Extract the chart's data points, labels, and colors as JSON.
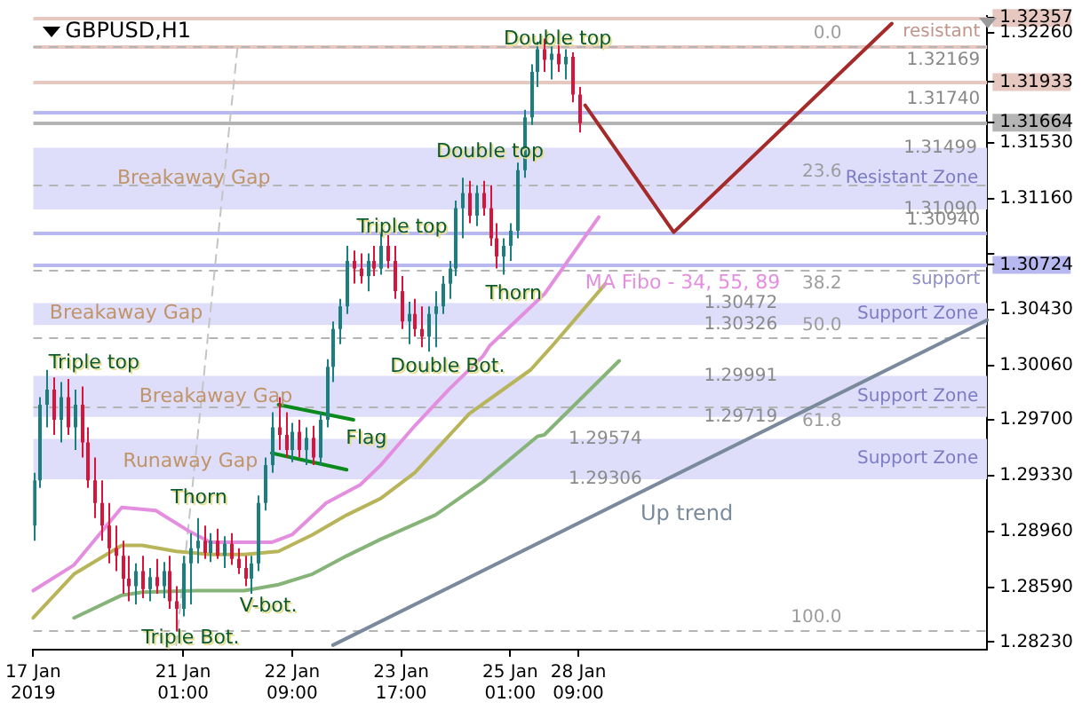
{
  "chart_data": {
    "type": "candlestick",
    "title": "GBPUSD,H1",
    "categories": [
      "17 Jan 2019",
      null,
      null,
      null,
      null,
      null,
      null,
      null,
      null,
      null,
      null,
      null,
      null,
      null,
      null,
      null,
      null,
      null,
      null,
      null,
      null,
      null,
      "21 Jan 01:00",
      null,
      null,
      null,
      null,
      null,
      null,
      null,
      null,
      null,
      null,
      null,
      null,
      null,
      null,
      null,
      "22 Jan 09:00",
      null,
      null,
      null,
      null,
      null,
      null,
      null,
      null,
      null,
      null,
      null,
      null,
      null,
      null,
      null,
      "23 Jan 17:00",
      null,
      null,
      null,
      null,
      null,
      null,
      null,
      null,
      null,
      null,
      null,
      null,
      null,
      null,
      null,
      "25 Jan 01:00",
      null,
      null,
      null,
      null,
      null,
      null,
      null,
      null,
      null,
      "28 Jan 09:00",
      null,
      null,
      null,
      null,
      null,
      null,
      null,
      null,
      null,
      null,
      null,
      null,
      null,
      null,
      null,
      null,
      null,
      null,
      null,
      null,
      null,
      null,
      null,
      null,
      null,
      null,
      null,
      null,
      null,
      null,
      null,
      null,
      null,
      null,
      null,
      null,
      null,
      null,
      null,
      null,
      null,
      null,
      null,
      null,
      null,
      null,
      null,
      null,
      null,
      null,
      null,
      null,
      null,
      null,
      null,
      null,
      null,
      null,
      null,
      null
    ],
    "ohlc": [
      [
        1.29,
        1.2935,
        1.289,
        1.293
      ],
      [
        1.293,
        1.2985,
        1.2925,
        1.298
      ],
      [
        1.298,
        1.3003,
        1.2965,
        1.299
      ],
      [
        1.299,
        1.2998,
        1.296,
        1.297
      ],
      [
        1.297,
        1.2995,
        1.2955,
        1.2985
      ],
      [
        1.2985,
        1.2997,
        1.296,
        1.2965
      ],
      [
        1.2965,
        1.299,
        1.295,
        1.298
      ],
      [
        1.298,
        1.2992,
        1.2945,
        1.2955
      ],
      [
        1.2955,
        1.2965,
        1.2925,
        1.293
      ],
      [
        1.293,
        1.2945,
        1.2905,
        1.2915
      ],
      [
        1.2915,
        1.293,
        1.289,
        1.29
      ],
      [
        1.29,
        1.2915,
        1.2875,
        1.2885
      ],
      [
        1.2885,
        1.29,
        1.287,
        1.288
      ],
      [
        1.288,
        1.289,
        1.2855,
        1.2865
      ],
      [
        1.2865,
        1.288,
        1.285,
        1.286
      ],
      [
        1.286,
        1.2875,
        1.2848,
        1.287
      ],
      [
        1.287,
        1.288,
        1.2852,
        1.2858
      ],
      [
        1.2858,
        1.2872,
        1.285,
        1.2866
      ],
      [
        1.2866,
        1.2878,
        1.2855,
        1.286
      ],
      [
        1.286,
        1.2876,
        1.2852,
        1.287
      ],
      [
        1.287,
        1.288,
        1.2845,
        1.285
      ],
      [
        1.285,
        1.286,
        1.283,
        1.2845
      ],
      [
        1.2845,
        1.288,
        1.284,
        1.2875
      ],
      [
        1.2875,
        1.2895,
        1.2848,
        1.2885
      ],
      [
        1.2885,
        1.2905,
        1.2875,
        1.289
      ],
      [
        1.289,
        1.29,
        1.2878,
        1.2882
      ],
      [
        1.2882,
        1.2895,
        1.2876,
        1.289
      ],
      [
        1.289,
        1.2898,
        1.2878,
        1.288
      ],
      [
        1.288,
        1.2893,
        1.2872,
        1.2888
      ],
      [
        1.2888,
        1.2895,
        1.2874,
        1.2878
      ],
      [
        1.2878,
        1.2885,
        1.2868,
        1.2872
      ],
      [
        1.2872,
        1.288,
        1.286,
        1.2865
      ],
      [
        1.2865,
        1.288,
        1.2855,
        1.2875
      ],
      [
        1.2875,
        1.292,
        1.287,
        1.2915
      ],
      [
        1.2915,
        1.2945,
        1.291,
        1.294
      ],
      [
        1.294,
        1.2975,
        1.2935,
        1.2965
      ],
      [
        1.2965,
        1.2985,
        1.295,
        1.296
      ],
      [
        1.296,
        1.2975,
        1.2945,
        1.295
      ],
      [
        1.295,
        1.2968,
        1.2942,
        1.2962
      ],
      [
        1.2962,
        1.297,
        1.2945,
        1.295
      ],
      [
        1.295,
        1.2965,
        1.294,
        1.2958
      ],
      [
        1.2958,
        1.2966,
        1.294,
        1.2945
      ],
      [
        1.2945,
        1.2975,
        1.294,
        1.297
      ],
      [
        1.297,
        1.301,
        1.2965,
        1.3005
      ],
      [
        1.3005,
        1.3035,
        1.2995,
        1.303
      ],
      [
        1.303,
        1.305,
        1.302,
        1.3045
      ],
      [
        1.3045,
        1.3085,
        1.304,
        1.3075
      ],
      [
        1.3075,
        1.3082,
        1.306,
        1.307
      ],
      [
        1.307,
        1.308,
        1.306,
        1.3065
      ],
      [
        1.3065,
        1.308,
        1.3055,
        1.3075
      ],
      [
        1.3075,
        1.3085,
        1.3065,
        1.307
      ],
      [
        1.307,
        1.3093,
        1.3066,
        1.3085
      ],
      [
        1.3085,
        1.3092,
        1.307,
        1.3075
      ],
      [
        1.3075,
        1.3085,
        1.305,
        1.3055
      ],
      [
        1.3055,
        1.3065,
        1.303,
        1.3035
      ],
      [
        1.3035,
        1.3048,
        1.302,
        1.304
      ],
      [
        1.304,
        1.305,
        1.3025,
        1.303
      ],
      [
        1.303,
        1.3045,
        1.3018,
        1.3025
      ],
      [
        1.3025,
        1.3045,
        1.3015,
        1.304
      ],
      [
        1.304,
        1.3055,
        1.3018,
        1.3045
      ],
      [
        1.3045,
        1.3065,
        1.304,
        1.306
      ],
      [
        1.306,
        1.3075,
        1.305,
        1.307
      ],
      [
        1.307,
        1.3115,
        1.3065,
        1.311
      ],
      [
        1.311,
        1.313,
        1.309,
        1.312
      ],
      [
        1.312,
        1.3128,
        1.31,
        1.3105
      ],
      [
        1.3105,
        1.3125,
        1.3098,
        1.312
      ],
      [
        1.312,
        1.3128,
        1.3105,
        1.311
      ],
      [
        1.311,
        1.3125,
        1.3085,
        1.309
      ],
      [
        1.309,
        1.31,
        1.307,
        1.3078
      ],
      [
        1.3078,
        1.309,
        1.3066,
        1.3085
      ],
      [
        1.3085,
        1.31,
        1.3075,
        1.3095
      ],
      [
        1.3095,
        1.314,
        1.309,
        1.3135
      ],
      [
        1.3135,
        1.3175,
        1.313,
        1.317
      ],
      [
        1.317,
        1.3205,
        1.3165,
        1.32
      ],
      [
        1.32,
        1.322,
        1.319,
        1.3215
      ],
      [
        1.3215,
        1.3222,
        1.32,
        1.3208
      ],
      [
        1.3208,
        1.3218,
        1.3195,
        1.3212
      ],
      [
        1.3212,
        1.3218,
        1.32,
        1.3205
      ],
      [
        1.3205,
        1.3215,
        1.3195,
        1.321
      ],
      [
        1.321,
        1.3213,
        1.318,
        1.3185
      ],
      [
        1.3185,
        1.319,
        1.316,
        1.3166
      ],
      null,
      null,
      null,
      null,
      null,
      null,
      null,
      null,
      null,
      null,
      null,
      null,
      null,
      null,
      null,
      null,
      null,
      null,
      null,
      null,
      null,
      null,
      null,
      null,
      null,
      null,
      null,
      null,
      null,
      null,
      null,
      null,
      null,
      null,
      null,
      null,
      null,
      null,
      null,
      null,
      null,
      null,
      null,
      null,
      null,
      null,
      null,
      null,
      null,
      null,
      null,
      null,
      null,
      null,
      null,
      null,
      null,
      null,
      null,
      null
    ],
    "colors": [
      "#1b7f80",
      "#1b7f80",
      "#1b7f80",
      "#d7143c",
      "#1b7f80",
      "#d7143c",
      "#1b7f80",
      "#d7143c",
      "#d7143c",
      "#d7143c",
      "#d7143c",
      "#d7143c",
      "#d7143c",
      "#d7143c",
      "#d7143c",
      "#1b7f80",
      "#d7143c",
      "#1b7f80",
      "#d7143c",
      "#1b7f80",
      "#d7143c",
      "#d7143c",
      "#1b7f80",
      "#1b7f80",
      "#1b7f80",
      "#d7143c",
      "#1b7f80",
      "#d7143c",
      "#1b7f80",
      "#d7143c",
      "#d7143c",
      "#d7143c",
      "#1b7f80",
      "#1b7f80",
      "#1b7f80",
      "#1b7f80",
      "#d7143c",
      "#d7143c",
      "#1b7f80",
      "#d7143c",
      "#1b7f80",
      "#d7143c",
      "#1b7f80",
      "#1b7f80",
      "#1b7f80",
      "#1b7f80",
      "#1b7f80",
      "#d7143c",
      "#d7143c",
      "#1b7f80",
      "#d7143c",
      "#1b7f80",
      "#d7143c",
      "#d7143c",
      "#d7143c",
      "#1b7f80",
      "#d7143c",
      "#d7143c",
      "#1b7f80",
      "#1b7f80",
      "#1b7f80",
      "#1b7f80",
      "#1b7f80",
      "#1b7f80",
      "#d7143c",
      "#1b7f80",
      "#d7143c",
      "#d7143c",
      "#d7143c",
      "#1b7f80",
      "#1b7f80",
      "#1b7f80",
      "#1b7f80",
      "#1b7f80",
      "#1b7f80",
      "#d7143c",
      "#1b7f80",
      "#d7143c",
      "#1b7f80",
      "#d7143c",
      "#d7143c",
      null,
      null,
      null,
      null,
      null,
      null,
      null,
      null,
      null,
      null,
      null,
      null,
      null,
      null,
      null,
      null,
      null,
      null,
      null,
      null,
      null,
      null,
      null,
      null,
      null,
      null,
      null,
      null,
      null,
      null,
      null,
      null,
      null,
      null,
      null,
      null,
      null,
      null,
      null,
      null,
      null,
      null,
      null,
      null,
      null,
      null,
      null,
      null,
      null,
      null,
      null,
      null,
      null,
      null,
      null,
      null,
      null,
      null,
      null,
      null
    ],
    "series": [
      {
        "type": "line",
        "color": "#e48ee0",
        "values": [
          1.2857,
          null,
          null,
          null,
          null,
          null,
          1.2874,
          null,
          null,
          null,
          null,
          null,
          null,
          1.2912,
          null,
          null,
          null,
          null,
          1.291,
          null,
          null,
          null,
          null,
          1.2896,
          null,
          null,
          1.2889,
          null,
          null,
          null,
          null,
          1.2889,
          null,
          null,
          null,
          1.2889,
          null,
          null,
          1.2894,
          null,
          null,
          null,
          null,
          1.2915,
          null,
          null,
          null,
          null,
          1.2927,
          null,
          null,
          1.294,
          null,
          null,
          null,
          null,
          1.2966,
          null,
          null,
          null,
          null,
          1.299,
          null,
          null,
          null,
          null,
          1.3012,
          1.3019,
          null,
          null,
          null,
          null,
          null,
          null,
          null,
          1.3053,
          null,
          null,
          null,
          null,
          null,
          null,
          null,
          1.3104,
          null,
          null,
          null,
          null,
          null,
          null,
          null,
          null,
          null,
          null,
          null,
          null,
          null,
          null,
          null,
          null,
          null,
          null,
          null,
          null,
          null,
          null,
          null,
          null,
          null,
          null,
          null,
          null,
          null,
          null,
          null,
          null,
          null,
          null,
          null,
          null,
          null,
          null,
          null,
          null,
          null,
          null,
          null,
          null,
          null,
          null,
          null,
          null,
          null,
          null,
          null,
          null,
          null,
          null,
          null,
          null,
          null
        ]
      },
      {
        "type": "line",
        "color": "#b8b45a",
        "values": [
          1.2839,
          null,
          null,
          null,
          null,
          null,
          1.2868,
          null,
          null,
          null,
          null,
          null,
          null,
          1.2887,
          null,
          null,
          1.2887,
          null,
          null,
          null,
          null,
          1.2883,
          null,
          null,
          null,
          null,
          1.2881,
          null,
          null,
          null,
          null,
          1.2881,
          null,
          null,
          null,
          null,
          1.2883,
          null,
          null,
          null,
          null,
          1.2894,
          null,
          null,
          null,
          null,
          1.2907,
          null,
          null,
          null,
          null,
          1.2918,
          null,
          null,
          null,
          null,
          1.2935,
          null,
          null,
          null,
          null,
          null,
          null,
          null,
          1.2974,
          null,
          null,
          null,
          null,
          null,
          null,
          null,
          null,
          1.3003,
          null,
          null,
          1.3018,
          null,
          null,
          null,
          null,
          null,
          null,
          null,
          1.306,
          null,
          null,
          null,
          null,
          null,
          null,
          null,
          null,
          null,
          null,
          null,
          null,
          null,
          null,
          null,
          null,
          null,
          null,
          null,
          null,
          null,
          null,
          null,
          null,
          null,
          null,
          null,
          null,
          null,
          null,
          null,
          null,
          null,
          null,
          null,
          null,
          null,
          null,
          null,
          null,
          null,
          null,
          null,
          null,
          null,
          null,
          null,
          null,
          null,
          null,
          null,
          null,
          null,
          null,
          null,
          null
        ]
      },
      {
        "type": "line",
        "color": "#86b478",
        "values": [
          null,
          null,
          null,
          null,
          null,
          null,
          1.2839,
          null,
          null,
          null,
          null,
          null,
          null,
          1.2854,
          null,
          null,
          1.2856,
          null,
          null,
          null,
          null,
          null,
          null,
          null,
          1.2857,
          null,
          null,
          null,
          null,
          null,
          null,
          1.2857,
          null,
          null,
          null,
          null,
          1.2861,
          null,
          null,
          null,
          null,
          1.2868,
          null,
          null,
          null,
          null,
          1.288,
          null,
          null,
          null,
          null,
          1.2891,
          null,
          null,
          null,
          null,
          null,
          null,
          null,
          1.2907,
          null,
          null,
          null,
          null,
          null,
          null,
          1.2929,
          null,
          null,
          null,
          null,
          null,
          null,
          null,
          1.2959,
          1.296,
          null,
          null,
          null,
          null,
          null,
          null,
          null,
          null,
          null,
          null,
          1.3009,
          null,
          null,
          null,
          null,
          null,
          null,
          null,
          null,
          null,
          null,
          null,
          null,
          null,
          null,
          null,
          null,
          null,
          null,
          null,
          null,
          null,
          null,
          null,
          null,
          null,
          null,
          null,
          null,
          null,
          null,
          null,
          null,
          null,
          null,
          null,
          null,
          null,
          null,
          null,
          null,
          null,
          null,
          null,
          null,
          null,
          null,
          null,
          null,
          null,
          null,
          null,
          null,
          null,
          null
        ]
      },
      {
        "type": "line",
        "color": "#c4c4c4",
        "line_style": "dashed",
        "values": [
          null,
          null,
          null,
          null,
          null,
          null,
          null,
          null,
          null,
          null,
          null,
          null,
          null,
          null,
          null,
          null,
          null,
          null,
          null,
          null,
          null,
          1.2821,
          null,
          null,
          null,
          null,
          null,
          null,
          null,
          null,
          1.3217,
          null,
          null,
          null,
          null,
          null,
          null,
          null,
          null,
          null,
          null,
          null,
          null,
          null,
          null,
          null,
          null,
          null,
          null,
          null,
          null,
          null,
          null,
          null,
          null,
          null,
          null,
          null,
          null,
          null,
          null,
          null,
          null,
          null,
          null,
          null,
          null,
          null,
          null,
          null,
          null,
          null,
          null,
          null,
          null,
          null,
          null,
          null,
          null,
          null,
          null,
          null,
          null,
          null,
          null,
          null,
          null,
          null,
          null,
          null,
          null,
          null,
          null,
          null,
          null,
          null,
          null,
          null,
          null,
          null,
          null,
          null,
          null,
          null,
          null,
          null,
          null,
          null,
          null,
          null,
          null,
          null,
          null,
          null,
          null,
          null,
          null,
          null,
          null,
          null,
          null,
          null,
          null,
          null,
          null,
          null,
          null,
          null,
          null,
          null,
          null,
          null,
          null,
          null,
          null,
          null,
          null,
          null,
          null,
          null,
          null
        ]
      },
      {
        "type": "line",
        "color": "#7a899c",
        "name": "Up trend",
        "values": [
          null,
          null,
          null,
          null,
          null,
          null,
          null,
          null,
          null,
          null,
          null,
          null,
          null,
          null,
          null,
          null,
          null,
          null,
          null,
          null,
          null,
          null,
          null,
          null,
          null,
          null,
          null,
          null,
          null,
          null,
          null,
          null,
          null,
          null,
          null,
          null,
          null,
          null,
          null,
          null,
          null,
          null,
          null,
          null,
          1.2821,
          null,
          null,
          null,
          null,
          null,
          null,
          null,
          null,
          null,
          null,
          null,
          null,
          null,
          null,
          null,
          null,
          null,
          null,
          null,
          null,
          null,
          null,
          null,
          null,
          null,
          null,
          null,
          null,
          null,
          null,
          null,
          null,
          null,
          null,
          null,
          null,
          null,
          null,
          null,
          null,
          null,
          null,
          null,
          null,
          null,
          null,
          null,
          null,
          null,
          null,
          null,
          null,
          null,
          null,
          null,
          null,
          null,
          null,
          null,
          null,
          null,
          null,
          null,
          null,
          null,
          null,
          null,
          null,
          null,
          null,
          null,
          null,
          null,
          null,
          null,
          null,
          null,
          null,
          null,
          null,
          null,
          null,
          null,
          null,
          null,
          null,
          null,
          null,
          null,
          null,
          null,
          null,
          null,
          null,
          null,
          1.3036
        ]
      },
      {
        "type": "line",
        "color": "#a52a2a",
        "values": [
          null,
          null,
          null,
          null,
          null,
          null,
          null,
          null,
          null,
          null,
          null,
          null,
          null,
          null,
          null,
          null,
          null,
          null,
          null,
          null,
          null,
          null,
          null,
          null,
          null,
          null,
          null,
          null,
          null,
          null,
          null,
          null,
          null,
          null,
          null,
          null,
          null,
          null,
          null,
          null,
          null,
          null,
          null,
          null,
          null,
          null,
          null,
          null,
          null,
          null,
          null,
          null,
          null,
          null,
          null,
          null,
          null,
          null,
          null,
          null,
          null,
          null,
          null,
          null,
          null,
          null,
          null,
          null,
          null,
          null,
          null,
          null,
          null,
          null,
          null,
          null,
          null,
          null,
          null,
          null,
          null,
          1.3178,
          null,
          null,
          null,
          null,
          null,
          null,
          null,
          null,
          null,
          null,
          null,
          null,
          1.3094,
          null,
          null,
          null,
          null,
          null,
          null,
          null,
          null,
          null,
          null,
          null,
          null,
          null,
          null,
          null,
          null,
          null,
          null,
          null,
          null,
          null,
          null,
          null,
          null,
          null,
          null,
          null,
          null,
          null,
          null,
          null,
          1.3232,
          null,
          null,
          null,
          null,
          null,
          null,
          null,
          null,
          null,
          null,
          null,
          null,
          null,
          null
        ]
      },
      {
        "type": "line",
        "color": "#0a8a1a",
        "values": [
          null,
          null,
          null,
          null,
          null,
          null,
          null,
          null,
          null,
          null,
          null,
          null,
          null,
          null,
          null,
          null,
          null,
          null,
          null,
          null,
          null,
          null,
          null,
          null,
          null,
          null,
          null,
          null,
          null,
          null,
          null,
          null,
          null,
          null,
          null,
          null,
          1.298,
          null,
          null,
          null,
          null,
          null,
          null,
          null,
          null,
          null,
          null,
          1.297,
          null,
          null,
          null,
          null,
          null,
          null,
          null,
          null,
          null,
          null,
          null,
          null,
          null,
          null,
          null,
          null,
          null,
          null,
          null,
          null,
          null,
          null,
          null,
          null,
          null,
          null,
          null,
          null,
          null,
          null,
          null,
          null,
          null,
          null,
          null,
          null,
          null,
          null,
          null,
          null,
          null,
          null,
          null,
          null,
          null,
          null,
          null,
          null,
          null,
          null,
          null,
          null,
          null,
          null,
          null,
          null,
          null,
          null,
          null,
          null,
          null,
          null,
          null,
          null,
          null,
          null,
          null,
          null,
          null,
          null,
          null,
          null,
          null,
          null,
          null,
          null,
          null,
          null,
          null,
          null,
          null,
          null,
          null,
          null,
          null,
          null,
          null,
          null,
          null,
          null,
          null,
          null,
          null
        ]
      },
      {
        "type": "line",
        "color": "#0a8a1a",
        "values": [
          null,
          null,
          null,
          null,
          null,
          null,
          null,
          null,
          null,
          null,
          null,
          null,
          null,
          null,
          null,
          null,
          null,
          null,
          null,
          null,
          null,
          null,
          null,
          null,
          null,
          null,
          null,
          null,
          null,
          null,
          null,
          null,
          null,
          null,
          null,
          1.2948,
          null,
          null,
          null,
          null,
          null,
          null,
          null,
          null,
          null,
          null,
          1.2937,
          null,
          null,
          null,
          null,
          null,
          null,
          null,
          null,
          null,
          null,
          null,
          null,
          null,
          null,
          null,
          null,
          null,
          null,
          null,
          null,
          null,
          null,
          null,
          null,
          null,
          null,
          null,
          null,
          null,
          null,
          null,
          null,
          null,
          null,
          null,
          null,
          null,
          null,
          null,
          null,
          null,
          null,
          null,
          null,
          null,
          null,
          null,
          null,
          null,
          null,
          null,
          null,
          null,
          null,
          null,
          null,
          null,
          null,
          null,
          null,
          null,
          null,
          null,
          null,
          null,
          null,
          null,
          null,
          null,
          null,
          null,
          null,
          null,
          null,
          null,
          null,
          null,
          null,
          null,
          null,
          null,
          null,
          null,
          null,
          null,
          null,
          null,
          null,
          null,
          null,
          null,
          null,
          null,
          null
        ]
      }
    ],
    "bands": [
      {
        "axis": "y",
        "from": 1.3109,
        "to": 1.31499,
        "label": "Resistant Zone",
        "color": "#dedefa"
      },
      {
        "axis": "y",
        "from": 1.30326,
        "to": 1.30472,
        "label": "Support Zone",
        "color": "#dedefa"
      },
      {
        "axis": "y",
        "from": 1.29719,
        "to": 1.29991,
        "label": "Support Zone",
        "color": "#dedefa"
      },
      {
        "axis": "y",
        "from": 1.29306,
        "to": 1.29574,
        "label": "Support Zone",
        "color": "#dedefa"
      }
    ],
    "ref_lines": [
      {
        "axis": "y",
        "value": 1.32357,
        "label": "resistant",
        "color": "#e6c8c0"
      },
      {
        "axis": "y",
        "value": 1.32169,
        "label": "1.32169",
        "color": "#e6c8c0"
      },
      {
        "axis": "y",
        "value": 1.31933,
        "color": "#e6c8c0"
      },
      {
        "axis": "y",
        "value": 1.3174,
        "label": "1.31740",
        "color": "#b8b8f0"
      },
      {
        "axis": "y",
        "value": 1.31664,
        "color": "#b4b4b4"
      },
      {
        "axis": "y",
        "value": 1.3094,
        "label": "1.30940",
        "color": "#b8b8f0"
      },
      {
        "axis": "y",
        "value": 1.30724,
        "label": "support",
        "color": "#b8b8f0"
      },
      {
        "axis": "y2",
        "value": 0,
        "label": "0.0",
        "color": "#b4b4b4",
        "line_style": "dashed"
      },
      {
        "axis": "y2",
        "value": 23.6,
        "label": "23.6",
        "color": "#b4b4b4",
        "line_style": "dashed"
      },
      {
        "axis": "y2",
        "value": 38.2,
        "label": "38.2",
        "color": "#b4b4b4",
        "line_style": "dashed"
      },
      {
        "axis": "y2",
        "value": 50,
        "label": "50.0",
        "color": "#b4b4b4",
        "line_style": "dashed"
      },
      {
        "axis": "y2",
        "value": 61.8,
        "label": "61.8",
        "color": "#b4b4b4",
        "line_style": "dashed"
      },
      {
        "axis": "y2",
        "value": 100,
        "label": "100.0",
        "color": "#b4b4b4",
        "line_style": "dashed"
      }
    ],
    "annotations": [
      "Double top",
      "Double top",
      "Triple top",
      "Thorn",
      "Double Bot.",
      "Triple top",
      "Thorn",
      "Flag",
      "V-bot.",
      "Triple Bot.",
      "MA Fibo - 34, 55, 89",
      "Breakaway Gap",
      "Breakaway Gap",
      "Breakaway Gap",
      "Runaway Gap",
      {
        "text": "1.31499",
        "y": 1.31499
      },
      {
        "text": "1.31090",
        "y": 1.3109
      },
      {
        "text": "1.30472",
        "y": 1.30472
      },
      {
        "text": "1.30326",
        "y": 1.30326
      },
      {
        "text": "1.29991",
        "y": 1.29991
      },
      {
        "text": "1.29719",
        "y": 1.29719
      },
      {
        "text": "1.29574",
        "y": 1.29574
      },
      {
        "text": "1.29306",
        "y": 1.29306
      }
    ],
    "ylim": [
      1.2818,
      1.3237
    ],
    "yticks": [
      {
        "value": 1.2823,
        "label": "1.28230"
      },
      {
        "value": 1.2859,
        "label": "1.28590"
      },
      {
        "value": 1.2896,
        "label": "1.28960"
      },
      {
        "value": 1.2933,
        "label": "1.29330"
      },
      {
        "value": 1.297,
        "label": "1.29700"
      },
      {
        "value": 1.3006,
        "label": "1.30060"
      },
      {
        "value": 1.3043,
        "label": "1.30430"
      },
      {
        "value": 1.308,
        "label": null
      },
      {
        "value": 1.3116,
        "label": "1.31160"
      },
      {
        "value": 1.3153,
        "label": "1.31530"
      },
      {
        "value": 1.3226,
        "label": "1.32260"
      },
      1.32357,
      1.31933,
      1.31664,
      1.30724
    ],
    "y2lim": [
      103.4,
      -5.2
    ]
  }
}
